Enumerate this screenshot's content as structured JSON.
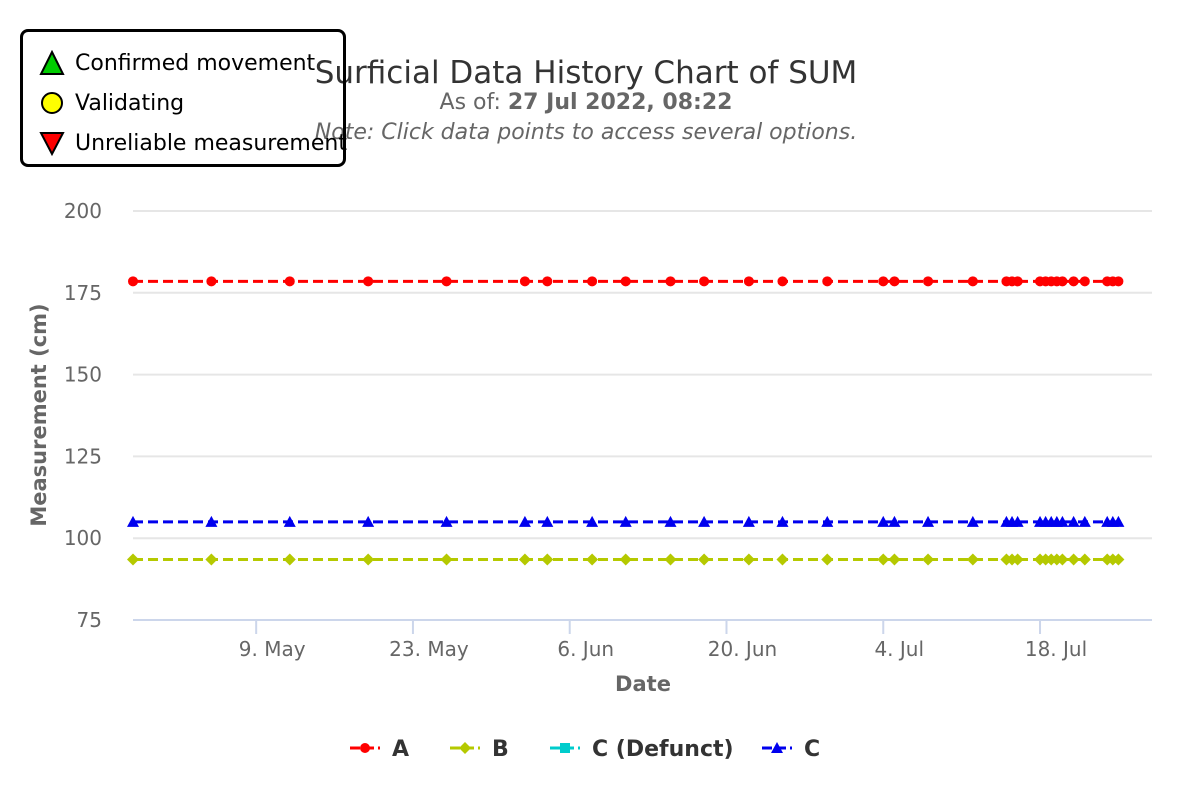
{
  "chart_data": {
    "type": "line",
    "title": "Surficial Data History Chart of SUM",
    "subtitle_prefix": "As of: ",
    "subtitle_value": "27 Jul 2022, 08:22",
    "note": "Note: Click data points to access several options.",
    "xlabel": "Date",
    "ylabel": "Measurement (cm)",
    "ylim": [
      75,
      200
    ],
    "yticks": [
      75,
      100,
      125,
      150,
      175,
      200
    ],
    "xlim": [
      "2022-04-28T00:00",
      "2022-07-28T00:00"
    ],
    "xticks": [
      {
        "date": "2022-05-09",
        "label": "9. May"
      },
      {
        "date": "2022-05-23",
        "label": "23. May"
      },
      {
        "date": "2022-06-06",
        "label": "6. Jun"
      },
      {
        "date": "2022-06-20",
        "label": "20. Jun"
      },
      {
        "date": "2022-07-04",
        "label": "4. Jul"
      },
      {
        "date": "2022-07-18",
        "label": "18. Jul"
      }
    ],
    "x": [
      "2022-04-28",
      "2022-05-05",
      "2022-05-12",
      "2022-05-19",
      "2022-05-26",
      "2022-06-02",
      "2022-06-04",
      "2022-06-08",
      "2022-06-11",
      "2022-06-15",
      "2022-06-18",
      "2022-06-22",
      "2022-06-25",
      "2022-06-29",
      "2022-07-04",
      "2022-07-05",
      "2022-07-08",
      "2022-07-12",
      "2022-07-15",
      "2022-07-15T12:00",
      "2022-07-16",
      "2022-07-18",
      "2022-07-18T12:00",
      "2022-07-19",
      "2022-07-19T12:00",
      "2022-07-20",
      "2022-07-21",
      "2022-07-22",
      "2022-07-24",
      "2022-07-24T12:00",
      "2022-07-25"
    ],
    "series": [
      {
        "name": "A",
        "y": 178.5,
        "color": "#ff0000",
        "marker": "circle"
      },
      {
        "name": "B",
        "y": 93.5,
        "color": "#b5c900",
        "marker": "diamond"
      },
      {
        "name": "C (Defunct)",
        "y": null,
        "color": "#00cccc",
        "marker": "square"
      },
      {
        "name": "C",
        "y": 105,
        "color": "#0000ee",
        "marker": "triangle"
      }
    ],
    "grid": true,
    "legend_position": "bottom"
  },
  "status_legend": {
    "items": [
      {
        "label": "Confirmed movement",
        "icon": "green-up-triangle-icon",
        "color": "#00cc00"
      },
      {
        "label": "Validating",
        "icon": "yellow-circle-icon",
        "color": "#ffff00"
      },
      {
        "label": "Unreliable measurement",
        "icon": "red-down-triangle-icon",
        "color": "#ff0000"
      }
    ]
  }
}
